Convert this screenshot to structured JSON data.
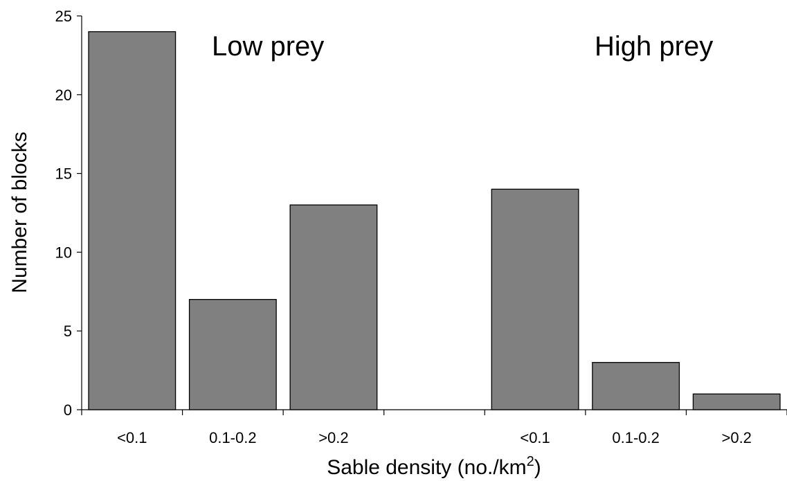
{
  "chart_data": {
    "type": "bar",
    "groups": [
      "Low prey",
      "High prey"
    ],
    "categories": [
      "<0.1",
      "0.1-0.2",
      ">0.2",
      "",
      "<0.1",
      "0.1-0.2",
      ">0.2"
    ],
    "values": [
      24,
      7,
      13,
      null,
      14,
      3,
      1
    ],
    "ylabel": "Number of blocks",
    "xlabel_main": "Sable density (no./km",
    "xlabel_sup": "2",
    "xlabel_close": ")",
    "ylim": [
      0,
      25
    ],
    "yticks": [
      0,
      5,
      10,
      15,
      20,
      25
    ],
    "grid": false,
    "bar_color": "#808080",
    "bar_stroke": "#000000"
  }
}
